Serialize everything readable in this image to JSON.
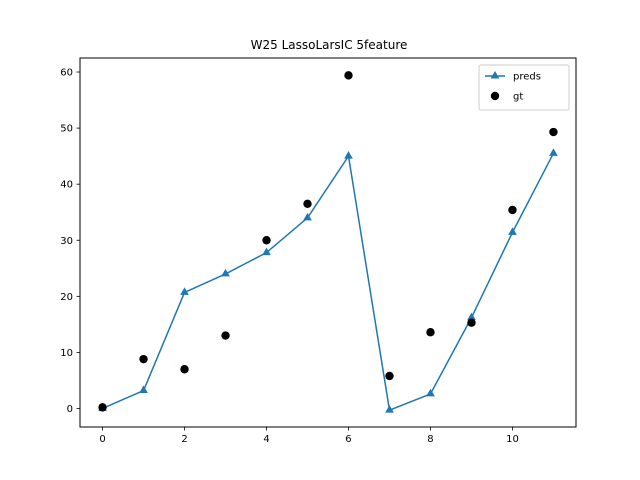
{
  "chart_data": {
    "type": "line",
    "title": "W25 LassoLarsIC 5feature",
    "xlabel": "",
    "ylabel": "",
    "xlim": [
      -0.55,
      11.55
    ],
    "ylim": [
      -3.3,
      62.5
    ],
    "xticks": [
      0,
      2,
      4,
      6,
      8,
      10
    ],
    "yticks": [
      0,
      10,
      20,
      30,
      40,
      50,
      60
    ],
    "grid": false,
    "legend_position": "top-right",
    "series": [
      {
        "name": "preds",
        "kind": "line",
        "marker": "triangle",
        "color": "#1f77b4",
        "x": [
          0,
          1,
          2,
          3,
          4,
          5,
          6,
          7,
          8,
          9,
          10,
          11
        ],
        "y": [
          0,
          3.2,
          20.7,
          24,
          27.8,
          34,
          45,
          -0.3,
          2.6,
          16.2,
          31.4,
          45.5
        ]
      },
      {
        "name": "gt",
        "kind": "scatter",
        "marker": "circle",
        "color": "#000000",
        "x": [
          0,
          1,
          2,
          3,
          4,
          5,
          6,
          7,
          8,
          9,
          10,
          11
        ],
        "y": [
          0.2,
          8.8,
          7,
          13,
          30,
          36.5,
          59.4,
          5.8,
          13.6,
          15.3,
          35.4,
          49.3
        ]
      }
    ]
  }
}
